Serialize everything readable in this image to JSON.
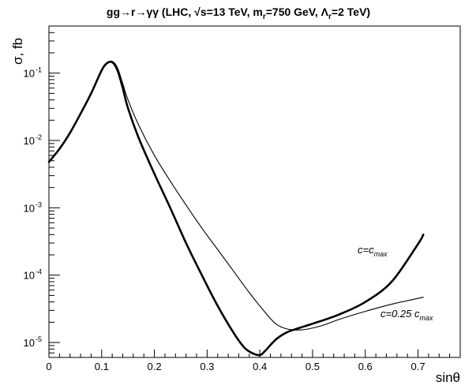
{
  "chart_data": {
    "type": "line",
    "title": {
      "prefix": "gg→r→γγ (LHC, √s=13 TeV, m",
      "sub1": "r",
      "mid": "=750 GeV, Λ",
      "sub2": "r",
      "suffix": "=2 TeV)"
    },
    "xlabel": "sinθ",
    "ylabel": "σ, fb",
    "xlim": [
      0,
      0.78
    ],
    "ylim": [
      6e-06,
      0.5
    ],
    "yscale": "log",
    "grid": false,
    "x_ticks": [
      "0",
      "0.1",
      "0.2",
      "0.3",
      "0.4",
      "0.5",
      "0.6",
      "0.7"
    ],
    "y_ticks": [
      "10",
      "10",
      "10",
      "10",
      "10"
    ],
    "y_tick_exponents": [
      "-1",
      "-2",
      "-3",
      "-4",
      "-5"
    ],
    "series": [
      {
        "id": "c_max",
        "label_base": "c=c",
        "label_sub": "max",
        "x": [
          0,
          0.02,
          0.04,
          0.06,
          0.08,
          0.1,
          0.11,
          0.12,
          0.13,
          0.14,
          0.15,
          0.17,
          0.2,
          0.23,
          0.26,
          0.29,
          0.32,
          0.35,
          0.37,
          0.385,
          0.4,
          0.41,
          0.43,
          0.45,
          0.47,
          0.5,
          0.55,
          0.6,
          0.65,
          0.7,
          0.71
        ],
        "y": [
          0.0048,
          0.0075,
          0.013,
          0.025,
          0.05,
          0.11,
          0.14,
          0.145,
          0.11,
          0.06,
          0.03,
          0.011,
          0.0032,
          0.001,
          0.0003,
          0.0001,
          3.5e-05,
          1.4e-05,
          8.5e-06,
          7e-06,
          6.5e-06,
          7.5e-06,
          1.1e-05,
          1.4e-05,
          1.6e-05,
          1.9e-05,
          2.6e-05,
          4e-05,
          8e-05,
          0.00029,
          0.0004
        ]
      },
      {
        "id": "c_025",
        "label_base": "c=0.25 c",
        "label_sub": "max",
        "x": [
          0,
          0.02,
          0.04,
          0.06,
          0.08,
          0.1,
          0.11,
          0.12,
          0.13,
          0.14,
          0.15,
          0.17,
          0.2,
          0.23,
          0.26,
          0.29,
          0.32,
          0.35,
          0.38,
          0.41,
          0.43,
          0.45,
          0.47,
          0.49,
          0.52,
          0.55,
          0.6,
          0.65,
          0.71
        ],
        "y": [
          0.0048,
          0.0075,
          0.013,
          0.025,
          0.05,
          0.11,
          0.14,
          0.15,
          0.12,
          0.07,
          0.04,
          0.017,
          0.006,
          0.0025,
          0.0011,
          0.0005,
          0.00024,
          0.000115,
          5.5e-05,
          2.8e-05,
          1.9e-05,
          1.6e-05,
          1.53e-05,
          1.58e-05,
          1.8e-05,
          2.2e-05,
          2.9e-05,
          3.7e-05,
          4.7e-05
        ]
      }
    ]
  }
}
